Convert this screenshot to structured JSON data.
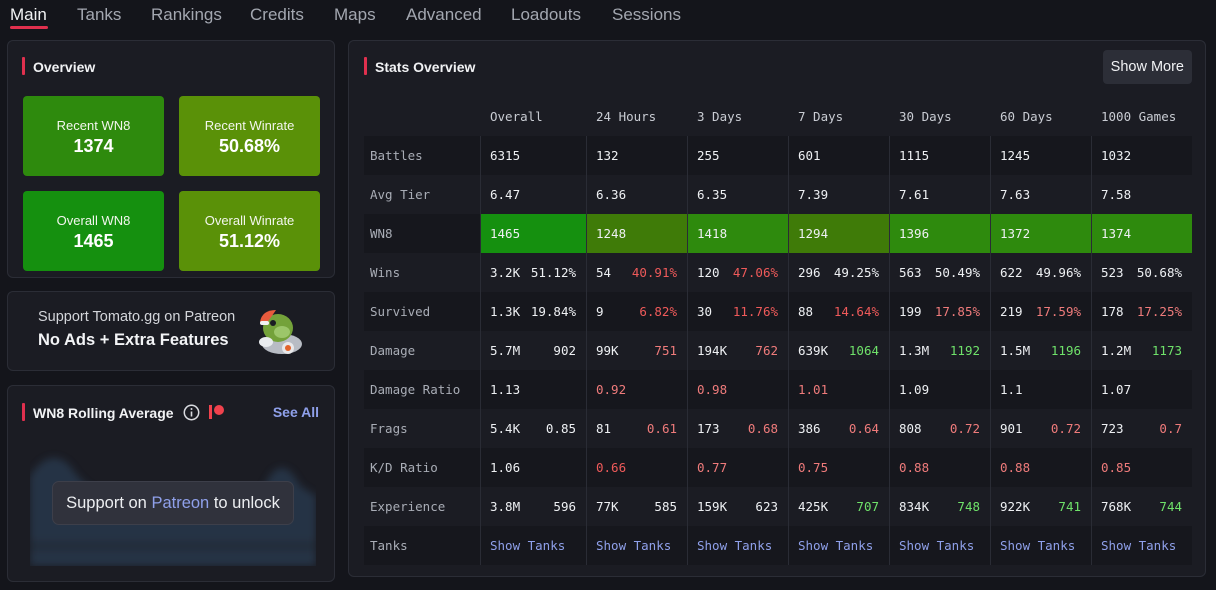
{
  "nav": {
    "tabs": [
      {
        "label": "Main"
      },
      {
        "label": "Tanks"
      },
      {
        "label": "Rankings"
      },
      {
        "label": "Credits"
      },
      {
        "label": "Maps"
      },
      {
        "label": "Advanced"
      },
      {
        "label": "Loadouts"
      },
      {
        "label": "Sessions"
      }
    ],
    "active": "Main"
  },
  "overview": {
    "title": "Overview",
    "tiles": [
      {
        "label": "Recent WN8",
        "value": "1374",
        "color": "#2e8a0d"
      },
      {
        "label": "Recent Winrate",
        "value": "50.68%",
        "color": "#5a9108"
      },
      {
        "label": "Overall WN8",
        "value": "1465",
        "color": "#15900f"
      },
      {
        "label": "Overall Winrate",
        "value": "51.12%",
        "color": "#5a9108"
      }
    ]
  },
  "patreon": {
    "line1": "Support Tomato.gg on Patreon",
    "line2": "No Ads + Extra Features",
    "icon": "tomato-mascot-icon"
  },
  "rolling": {
    "title": "WN8 Rolling Average",
    "see_all": "See All",
    "unlock_prefix": "Support on ",
    "unlock_link": "Patreon",
    "unlock_suffix": " to unlock"
  },
  "stats": {
    "title": "Stats Overview",
    "show_more": "Show More",
    "columns": [
      "Overall",
      "24 Hours",
      "3 Days",
      "7 Days",
      "30 Days",
      "60 Days",
      "1000 Games"
    ],
    "rows": [
      {
        "label": "Battles",
        "cells": [
          [
            "6315",
            ""
          ],
          [
            "132",
            ""
          ],
          [
            "255",
            ""
          ],
          [
            "601",
            ""
          ],
          [
            "1115",
            ""
          ],
          [
            "1245",
            ""
          ],
          [
            "1032",
            ""
          ]
        ]
      },
      {
        "label": "Avg Tier",
        "cells": [
          [
            "6.47",
            ""
          ],
          [
            "6.36",
            ""
          ],
          [
            "6.35",
            ""
          ],
          [
            "7.39",
            ""
          ],
          [
            "7.61",
            ""
          ],
          [
            "7.63",
            ""
          ],
          [
            "7.58",
            ""
          ]
        ]
      },
      {
        "label": "WN8",
        "cells": [
          [
            "1465",
            ""
          ],
          [
            "1248",
            ""
          ],
          [
            "1418",
            ""
          ],
          [
            "1294",
            ""
          ],
          [
            "1396",
            ""
          ],
          [
            "1372",
            ""
          ],
          [
            "1374",
            ""
          ]
        ],
        "fills": [
          "#15900f",
          "#3f7b08",
          "#2e8a0d",
          "#3f7b08",
          "#2e8a0d",
          "#2e8a0d",
          "#2e8a0d"
        ]
      },
      {
        "label": "Wins",
        "cells": [
          [
            "3.2K",
            "51.12%"
          ],
          [
            "54",
            "40.91%"
          ],
          [
            "120",
            "47.06%"
          ],
          [
            "296",
            "49.25%"
          ],
          [
            "563",
            "50.49%"
          ],
          [
            "622",
            "49.96%"
          ],
          [
            "523",
            "50.68%"
          ]
        ],
        "tones": [
          "white",
          "red",
          "red",
          "white",
          "white",
          "white",
          "white"
        ]
      },
      {
        "label": "Survived",
        "cells": [
          [
            "1.3K",
            "19.84%"
          ],
          [
            "9",
            "6.82%"
          ],
          [
            "30",
            "11.76%"
          ],
          [
            "88",
            "14.64%"
          ],
          [
            "199",
            "17.85%"
          ],
          [
            "219",
            "17.59%"
          ],
          [
            "178",
            "17.25%"
          ]
        ],
        "tones": [
          "white",
          "red",
          "red",
          "red",
          "salmon",
          "salmon",
          "salmon"
        ]
      },
      {
        "label": "Damage",
        "cells": [
          [
            "5.7M",
            "902"
          ],
          [
            "99K",
            "751"
          ],
          [
            "194K",
            "762"
          ],
          [
            "639K",
            "1064"
          ],
          [
            "1.3M",
            "1192"
          ],
          [
            "1.5M",
            "1196"
          ],
          [
            "1.2M",
            "1173"
          ]
        ],
        "tones": [
          "white",
          "salmon",
          "salmon",
          "green",
          "green",
          "green",
          "green"
        ]
      },
      {
        "label": "Damage Ratio",
        "cells": [
          [
            "1.13",
            ""
          ],
          [
            "0.92",
            ""
          ],
          [
            "0.98",
            ""
          ],
          [
            "1.01",
            ""
          ],
          [
            "1.09",
            ""
          ],
          [
            "1.1",
            ""
          ],
          [
            "1.07",
            ""
          ]
        ],
        "tones1": [
          "white",
          "salmon",
          "salmon",
          "salmon",
          "white",
          "white",
          "white"
        ]
      },
      {
        "label": "Frags",
        "cells": [
          [
            "5.4K",
            "0.85"
          ],
          [
            "81",
            "0.61"
          ],
          [
            "173",
            "0.68"
          ],
          [
            "386",
            "0.64"
          ],
          [
            "808",
            "0.72"
          ],
          [
            "901",
            "0.72"
          ],
          [
            "723",
            "0.7"
          ]
        ],
        "tones": [
          "white",
          "salmon",
          "salmon",
          "salmon",
          "salmon",
          "salmon",
          "salmon"
        ]
      },
      {
        "label": "K/D Ratio",
        "cells": [
          [
            "1.06",
            ""
          ],
          [
            "0.66",
            ""
          ],
          [
            "0.77",
            ""
          ],
          [
            "0.75",
            ""
          ],
          [
            "0.88",
            ""
          ],
          [
            "0.88",
            ""
          ],
          [
            "0.85",
            ""
          ]
        ],
        "tones1": [
          "white",
          "red",
          "salmon",
          "salmon",
          "salmon",
          "salmon",
          "salmon"
        ]
      },
      {
        "label": "Experience",
        "cells": [
          [
            "3.8M",
            "596"
          ],
          [
            "77K",
            "585"
          ],
          [
            "159K",
            "623"
          ],
          [
            "425K",
            "707"
          ],
          [
            "834K",
            "748"
          ],
          [
            "922K",
            "741"
          ],
          [
            "768K",
            "744"
          ]
        ],
        "tones": [
          "white",
          "white",
          "white",
          "green",
          "green",
          "green",
          "green"
        ]
      },
      {
        "label": "Tanks",
        "cells": [
          [
            "Show Tanks",
            ""
          ],
          [
            "Show Tanks",
            ""
          ],
          [
            "Show Tanks",
            ""
          ],
          [
            "Show Tanks",
            ""
          ],
          [
            "Show Tanks",
            ""
          ],
          [
            "Show Tanks",
            ""
          ],
          [
            "Show Tanks",
            ""
          ]
        ],
        "link": true
      }
    ]
  }
}
